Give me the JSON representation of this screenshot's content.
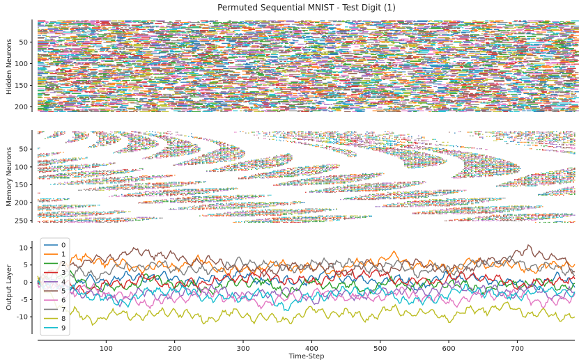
{
  "figure": {
    "title": "Permuted Sequential MNIST - Test Digit (1)"
  },
  "colors": [
    "#1f77b4",
    "#ff7f0e",
    "#2ca02c",
    "#d62728",
    "#9467bd",
    "#8c564b",
    "#e377c2",
    "#7f7f7f",
    "#bcbd22",
    "#17becf"
  ],
  "chart_data": [
    {
      "type": "heatmap",
      "panel": "hidden",
      "ylabel": "Hidden Neurons",
      "xlim": [
        0,
        784
      ],
      "ylim": [
        212,
        1
      ],
      "yticks": [
        50,
        100,
        150,
        200
      ],
      "n_neurons": 212,
      "description_values": "dense multi-colored spike raster across all time steps"
    },
    {
      "type": "heatmap",
      "panel": "memory",
      "ylabel": "Memory Neurons",
      "xlim": [
        0,
        784
      ],
      "ylim": [
        256,
        1
      ],
      "yticks": [
        50,
        100,
        150,
        200,
        250
      ],
      "n_neurons": 256,
      "description_values": "diagonal wave-like spike raster, sparser for higher neuron indices early on"
    },
    {
      "type": "line",
      "panel": "output",
      "ylabel": "Output Layer",
      "xlabel": "Time-Step",
      "xlim": [
        0,
        784
      ],
      "ylim": [
        -15,
        12
      ],
      "yticks": [
        10,
        5,
        0,
        -5,
        -10
      ],
      "xticks": [
        100,
        200,
        300,
        400,
        500,
        600,
        700
      ],
      "legend": "top-left",
      "x": [
        0,
        40,
        80,
        120,
        160,
        200,
        240,
        280,
        320,
        360,
        400,
        440,
        480,
        520,
        560,
        600,
        640,
        680,
        720,
        760,
        784
      ],
      "series": [
        {
          "name": "0",
          "values": [
            0,
            -1,
            0.5,
            1,
            2,
            1,
            0,
            2,
            1,
            0,
            1,
            2,
            0,
            1,
            -1,
            2,
            1,
            0,
            -1,
            1,
            0
          ]
        },
        {
          "name": "1",
          "values": [
            0,
            6,
            7,
            5,
            4,
            5,
            6,
            3,
            4,
            5,
            4,
            3,
            6,
            7,
            5,
            4,
            6,
            5,
            4,
            5,
            6
          ]
        },
        {
          "name": "2",
          "values": [
            0,
            2,
            -1,
            -2,
            1,
            0,
            -2,
            -1,
            1,
            -3,
            0,
            -1,
            -2,
            0,
            -1,
            0,
            -2,
            -1,
            0,
            -1,
            -1
          ]
        },
        {
          "name": "3",
          "values": [
            0,
            -1,
            -2,
            0,
            1,
            -1,
            0,
            1,
            2,
            1,
            0,
            2,
            3,
            1,
            0,
            1,
            2,
            0,
            -1,
            1,
            0
          ]
        },
        {
          "name": "4",
          "values": [
            0,
            -2,
            -3,
            -5,
            -3,
            -4,
            -2,
            -3,
            -4,
            -2,
            -5,
            -3,
            -4,
            -2,
            -3,
            -1,
            -2,
            -3,
            -2,
            -4,
            -3
          ]
        },
        {
          "name": "5",
          "values": [
            0,
            5,
            6,
            8,
            9,
            7,
            6,
            5,
            3,
            4,
            5,
            3,
            5,
            4,
            6,
            3,
            5,
            7,
            9,
            7,
            3
          ]
        },
        {
          "name": "6",
          "values": [
            0,
            -3,
            -2,
            -4,
            -6,
            -5,
            -3,
            -4,
            -6,
            -5,
            -3,
            -4,
            -5,
            -3,
            -4,
            -6,
            -4,
            -3,
            -5,
            -6,
            -4
          ]
        },
        {
          "name": "7",
          "values": [
            0,
            3,
            2,
            4,
            5,
            4,
            3,
            5,
            6,
            4,
            5,
            6,
            4,
            5,
            3,
            4,
            5,
            6,
            5,
            4,
            3
          ]
        },
        {
          "name": "8",
          "values": [
            0,
            -8,
            -11,
            -9,
            -10,
            -8,
            -11,
            -9,
            -10,
            -11,
            -8,
            -9,
            -10,
            -8,
            -9,
            -10,
            -8,
            -7,
            -9,
            -10,
            -9
          ]
        },
        {
          "name": "9",
          "values": [
            0,
            -2,
            -4,
            -6,
            -3,
            -2,
            -4,
            -5,
            -3,
            -7,
            -4,
            -3,
            -2,
            -4,
            -6,
            -3,
            -2,
            -4,
            -3,
            -2,
            -4
          ]
        }
      ]
    }
  ]
}
